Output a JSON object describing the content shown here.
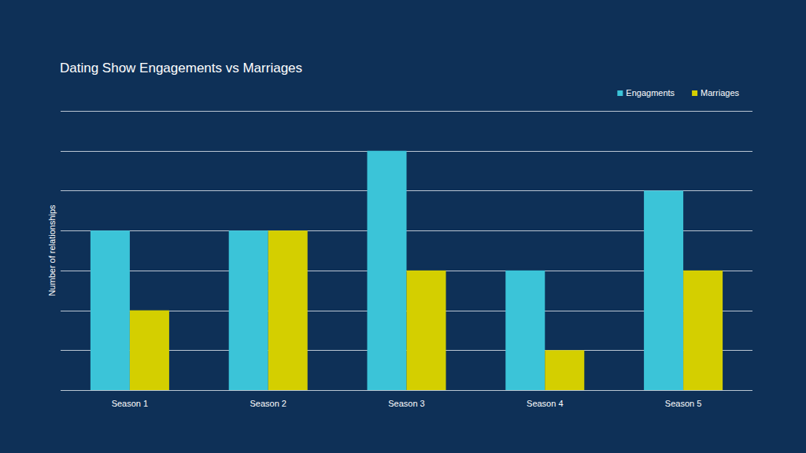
{
  "chart_data": {
    "type": "bar",
    "title": "Dating Show Engagements vs Marriages",
    "y_label": "Number of relationships",
    "categories": [
      "Season 1",
      "Season 2",
      "Season 3",
      "Season 4",
      "Season 5"
    ],
    "series": [
      {
        "name": "Engagments",
        "color": "#3bc4d8",
        "values": [
          4,
          4,
          6,
          3,
          5
        ]
      },
      {
        "name": "Marriages",
        "color": "#d4cf00",
        "values": [
          2,
          4,
          3,
          1,
          3
        ]
      }
    ],
    "ylim": [
      0,
      7
    ],
    "yticks": [
      0,
      1,
      2,
      3,
      4,
      5,
      6,
      7
    ],
    "grid": true,
    "legend": "top-right",
    "tick_labels": "x"
  }
}
